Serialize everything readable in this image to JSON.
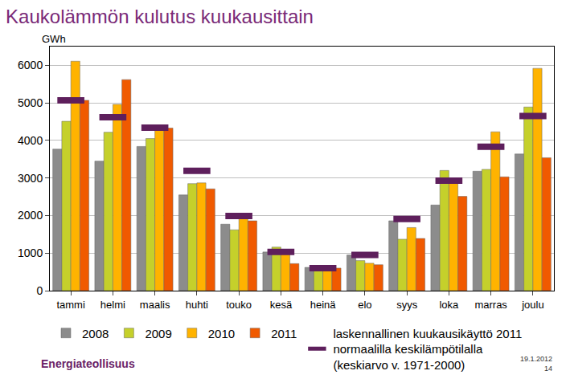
{
  "chart_data": {
    "type": "bar",
    "title": "Kaukolämmön kulutus kuukausittain",
    "y_label": "GWh",
    "categories": [
      "tammi",
      "helmi",
      "maalis",
      "huhti",
      "touko",
      "kesä",
      "heinä",
      "elo",
      "syys",
      "loka",
      "marras",
      "joulu"
    ],
    "series": [
      {
        "name": "2008",
        "type": "bar",
        "color": "#8c8c8c",
        "values": [
          3770,
          3450,
          3840,
          2550,
          1770,
          1030,
          620,
          950,
          1860,
          2280,
          3180,
          3640
        ]
      },
      {
        "name": "2009",
        "type": "bar",
        "color": "#c5d02b",
        "values": [
          4510,
          4220,
          4050,
          2850,
          1620,
          1160,
          650,
          800,
          1370,
          3200,
          3230,
          4890
        ]
      },
      {
        "name": "2010",
        "type": "bar",
        "color": "#ffb300",
        "values": [
          6110,
          4960,
          4380,
          2870,
          1920,
          1000,
          540,
          730,
          1680,
          2920,
          4230,
          5920
        ]
      },
      {
        "name": "2011",
        "type": "bar",
        "color": "#f05a00",
        "values": [
          5070,
          5620,
          4330,
          2710,
          1860,
          720,
          600,
          690,
          1390,
          2510,
          3030,
          3540
        ]
      },
      {
        "name": "laskennallinen kuukausikäyttö 2011 normaalilla keskilämpötilalla (keskiarvo v. 1971-2000)",
        "type": "scatter",
        "marker": "dash",
        "color": "#5e1f5c",
        "values": [
          5070,
          4620,
          4340,
          3190,
          1990,
          1030,
          600,
          950,
          1910,
          2930,
          3830,
          4650
        ]
      }
    ],
    "ylim": [
      0,
      6500
    ],
    "yticks": [
      0,
      1000,
      2000,
      3000,
      4000,
      5000,
      6000
    ],
    "grid": true,
    "legend": "bottom",
    "annotations": [
      "Energiateollisuus",
      "19.1.2012",
      "14"
    ]
  }
}
